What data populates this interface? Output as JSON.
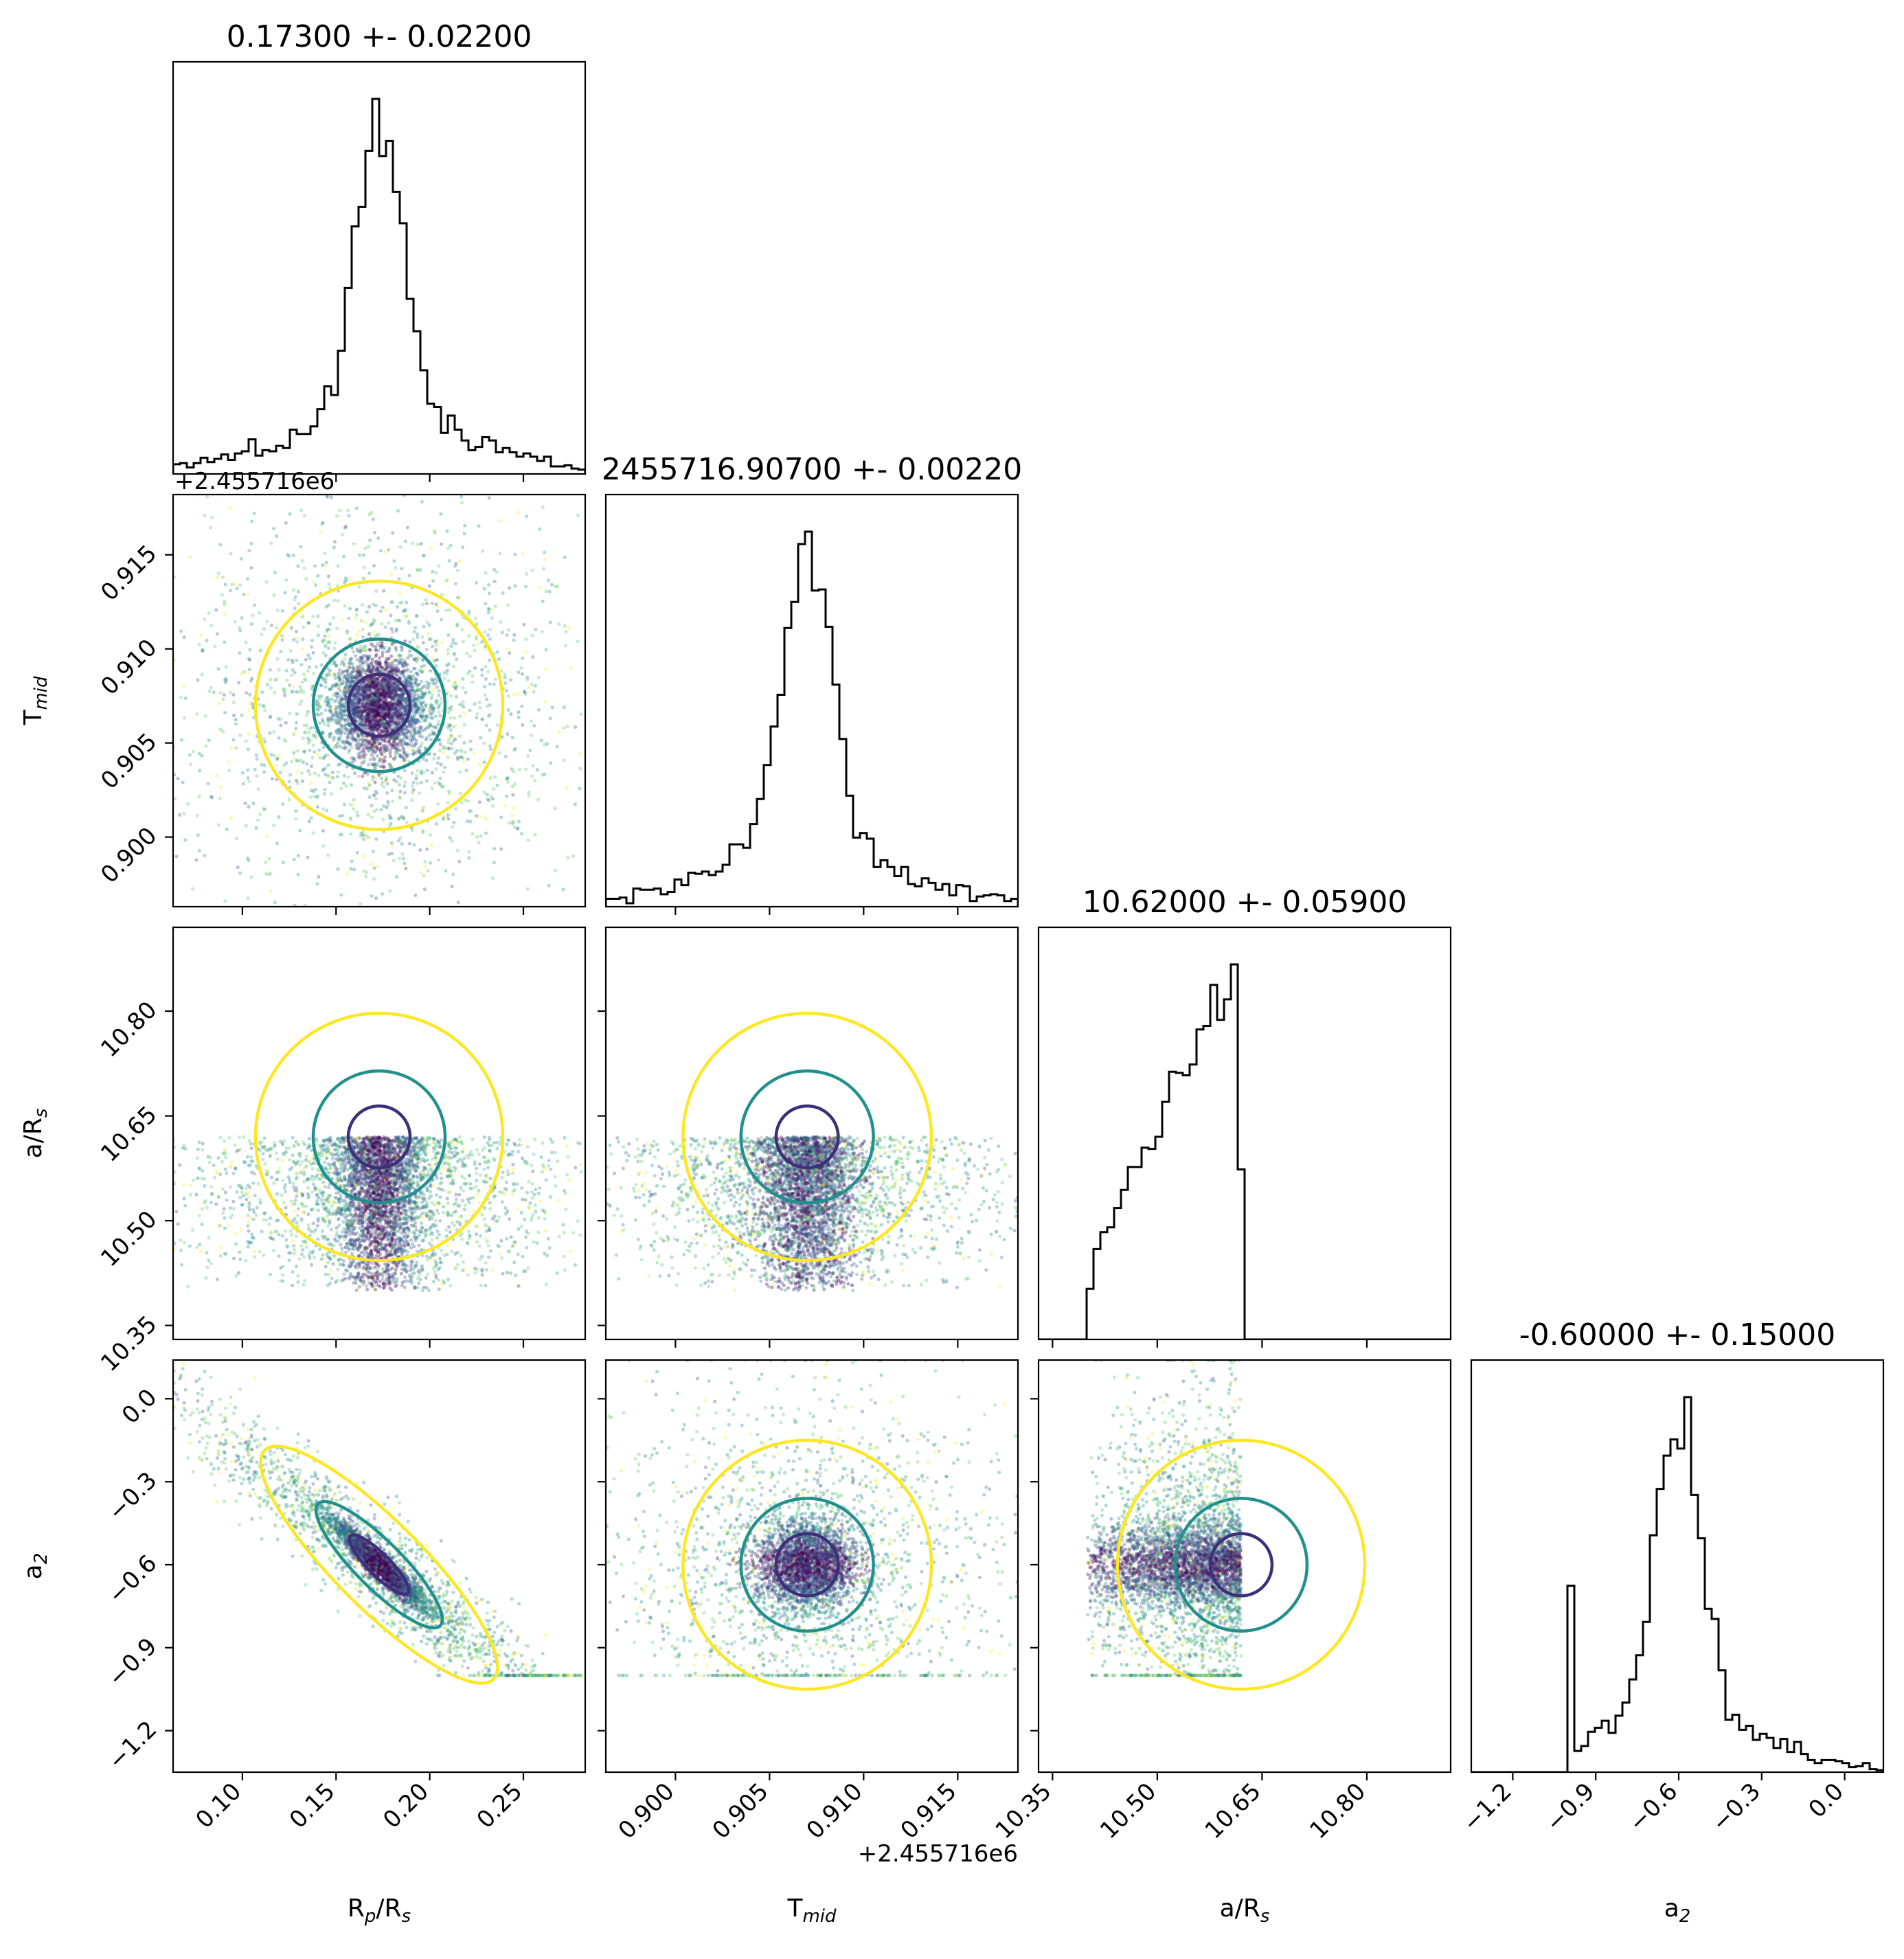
{
  "chart_data": {
    "type": "scatter",
    "variant": "corner-plot",
    "parameters": [
      {
        "label_main": "R",
        "label_sub": "p",
        "label_suffix": "/R",
        "label_sub2": "s",
        "title": "0.17300 +- 0.02200",
        "mean": 0.173,
        "sigma": 0.022,
        "range": [
          0.063,
          0.283
        ],
        "ticks": [
          0.1,
          0.15,
          0.2,
          0.25
        ],
        "tick_labels": [
          "0.10",
          "0.15",
          "0.20",
          "0.25"
        ],
        "offset": ""
      },
      {
        "label_main": "T",
        "label_sub": "mid",
        "label_suffix": "",
        "label_sub2": "",
        "title": "2455716.90700 +- 0.00220",
        "mean": 0.907,
        "sigma": 0.0022,
        "range": [
          0.8963,
          0.9182
        ],
        "ticks": [
          0.9,
          0.905,
          0.91,
          0.915
        ],
        "tick_labels": [
          "0.900",
          "0.905",
          "0.910",
          "0.915"
        ],
        "offset": "+2.455716e6"
      },
      {
        "label_main": "a/R",
        "label_sub": "s",
        "label_suffix": "",
        "label_sub2": "",
        "title": "10.62000 +- 0.05900",
        "mean": 10.62,
        "sigma": 0.059,
        "range": [
          10.33,
          10.92
        ],
        "ticks": [
          10.35,
          10.5,
          10.65,
          10.8
        ],
        "tick_labels": [
          "10.35",
          "10.50",
          "10.65",
          "10.80"
        ],
        "offset": "",
        "sample_range": [
          10.4,
          10.62
        ]
      },
      {
        "label_main": "a",
        "label_sub": "2",
        "label_suffix": "",
        "label_sub2": "",
        "title": "-0.60000 +- 0.15000",
        "mean": -0.6,
        "sigma": 0.15,
        "range": [
          -1.35,
          0.14
        ],
        "ticks": [
          -1.2,
          -0.9,
          -0.6,
          -0.3,
          0.0
        ],
        "tick_labels": [
          "−1.2",
          "−0.9",
          "−0.6",
          "−0.3",
          "0.0"
        ],
        "offset": "",
        "sample_range": [
          -1.0,
          0.14
        ]
      }
    ],
    "hist_peak_ratio": 1.0,
    "correlation": {
      "0-3": -0.95
    },
    "colormap": [
      "#440154",
      "#3b528b",
      "#21908d",
      "#5dc963",
      "#fde725"
    ],
    "contour_colors": [
      "#3b2f7a",
      "#21908d",
      "#fde725"
    ]
  }
}
